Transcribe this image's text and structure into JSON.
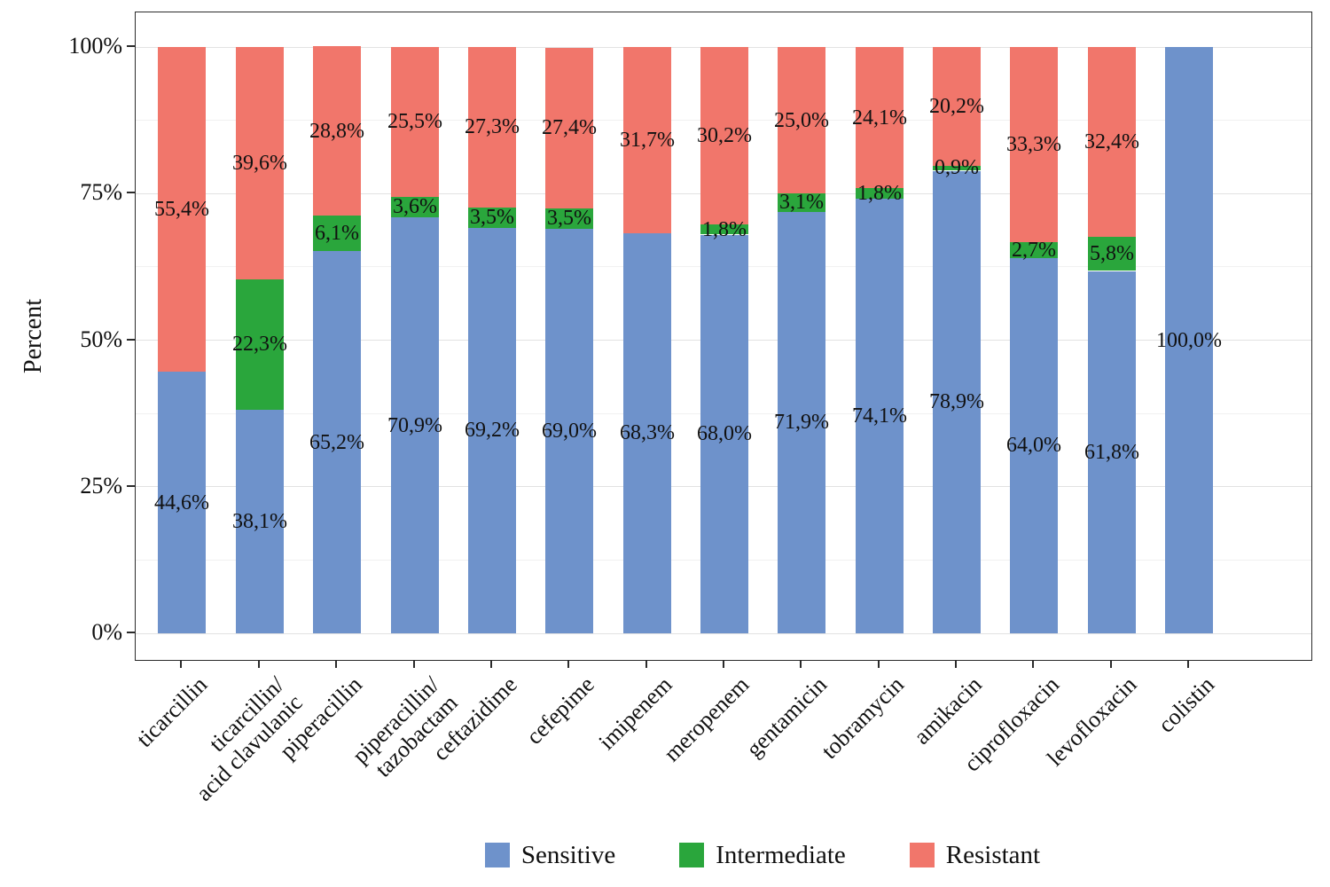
{
  "figure": {
    "background": "#ffffff",
    "panel_border_color": "#2b2b2b"
  },
  "chart_data": {
    "type": "bar",
    "stacked": true,
    "units": "percent",
    "title": "",
    "xlabel": "",
    "ylabel": "Percent",
    "ylim": [
      0,
      100
    ],
    "grid": true,
    "legend_position": "bottom",
    "yticks": [
      {
        "value": 0,
        "label": "0%"
      },
      {
        "value": 25,
        "label": "25%"
      },
      {
        "value": 50,
        "label": "50%"
      },
      {
        "value": 75,
        "label": "75%"
      },
      {
        "value": 100,
        "label": "100%"
      }
    ],
    "minor_gridlines": [
      12.5,
      37.5,
      62.5,
      87.5
    ],
    "categories": [
      "ticarcillin",
      "ticarcillin/\nacid clavulanic",
      "piperacillin",
      "piperacillin/\ntazobactam",
      "ceftazidime",
      "cefepime",
      "imipenem",
      "meropenem",
      "gentamicin",
      "tobramycin",
      "amikacin",
      "ciprofloxacin",
      "levofloxacin",
      "colistin"
    ],
    "series": [
      {
        "name": "Sensitive",
        "color": "#6e92cb",
        "values": [
          44.6,
          38.1,
          65.2,
          70.9,
          69.2,
          69.0,
          68.3,
          68.0,
          71.9,
          74.1,
          78.9,
          64.0,
          61.8,
          100.0
        ],
        "labels": [
          "44,6%",
          "38,1%",
          "65,2%",
          "70,9%",
          "69,2%",
          "69,0%",
          "68,3%",
          "68,0%",
          "71,9%",
          "74,1%",
          "78,9%",
          "64,0%",
          "61,8%",
          "100,0%"
        ]
      },
      {
        "name": "Intermediate",
        "color": "#2aa63c",
        "values": [
          0,
          22.3,
          6.1,
          3.6,
          3.5,
          3.5,
          0,
          1.8,
          3.1,
          1.8,
          0.9,
          2.7,
          5.8,
          0
        ],
        "labels": [
          "",
          "22,3%",
          "6,1%",
          "3,6%",
          "3,5%",
          "3,5%",
          "",
          "1,8%",
          "3,1%",
          "1,8%",
          "0,9%",
          "2,7%",
          "5,8%",
          ""
        ]
      },
      {
        "name": "Resistant",
        "color": "#f1766b",
        "values": [
          55.4,
          39.6,
          28.8,
          25.5,
          27.3,
          27.4,
          31.7,
          30.2,
          25.0,
          24.1,
          20.2,
          33.3,
          32.4,
          0
        ],
        "labels": [
          "55,4%",
          "39,6%",
          "28,8%",
          "25,5%",
          "27,3%",
          "27,4%",
          "31,7%",
          "30,2%",
          "25,0%",
          "24,1%",
          "20,2%",
          "33,3%",
          "32,4%",
          ""
        ]
      }
    ],
    "legend": [
      "Sensitive",
      "Intermediate",
      "Resistant"
    ]
  }
}
